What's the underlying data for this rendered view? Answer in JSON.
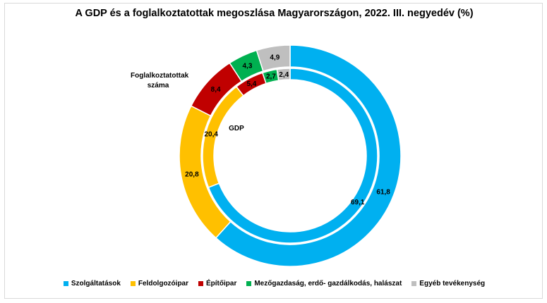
{
  "chart_data": {
    "type": "pie",
    "title": "A GDP és a foglalkoztatottak megoszlása Magyarországon, 2022. III. negyedév (%)",
    "categories": [
      "Szolgáltatások",
      "Feldolgozóipar",
      "Építőipar",
      "Mezőgazdaság, erdő- gazdálkodás, halászat",
      "Egyéb tevékenység"
    ],
    "colors": [
      "#00B0F0",
      "#FFC000",
      "#C00000",
      "#00B050",
      "#BFBFBF"
    ],
    "series": [
      {
        "name": "Foglalkoztatottak száma",
        "ring": "outer",
        "values": [
          61.8,
          20.8,
          8.4,
          4.3,
          4.9
        ],
        "labels": [
          "61,8",
          "20,8",
          "8,4",
          "4,3",
          "4,9"
        ]
      },
      {
        "name": "GDP",
        "ring": "inner",
        "values": [
          69.1,
          20.4,
          5.4,
          2.7,
          2.4
        ],
        "labels": [
          "69,1",
          "20,4",
          "5,4",
          "2,7",
          "2,4"
        ]
      }
    ],
    "legend": "bottom"
  }
}
